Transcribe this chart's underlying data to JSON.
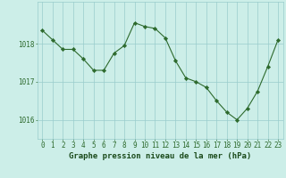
{
  "x": [
    0,
    1,
    2,
    3,
    4,
    5,
    6,
    7,
    8,
    9,
    10,
    11,
    12,
    13,
    14,
    15,
    16,
    17,
    18,
    19,
    20,
    21,
    22,
    23
  ],
  "y": [
    1018.35,
    1018.1,
    1017.85,
    1017.85,
    1017.6,
    1017.3,
    1017.3,
    1017.75,
    1017.95,
    1018.55,
    1018.45,
    1018.4,
    1018.15,
    1017.55,
    1017.1,
    1017.0,
    1016.85,
    1016.5,
    1016.2,
    1016.0,
    1016.3,
    1016.75,
    1017.4,
    1018.1
  ],
  "line_color": "#2d6a2d",
  "marker_color": "#2d6a2d",
  "bg_color": "#cceee8",
  "grid_color": "#99cccc",
  "axis_label_color": "#1a4a1a",
  "tick_color": "#2d6a2d",
  "xlabel": "Graphe pression niveau de la mer (hPa)",
  "ylim": [
    1015.5,
    1019.1
  ],
  "yticks": [
    1016,
    1017,
    1018
  ],
  "xticks": [
    0,
    1,
    2,
    3,
    4,
    5,
    6,
    7,
    8,
    9,
    10,
    11,
    12,
    13,
    14,
    15,
    16,
    17,
    18,
    19,
    20,
    21,
    22,
    23
  ],
  "font_size": 5.5,
  "label_font_size": 6.5
}
